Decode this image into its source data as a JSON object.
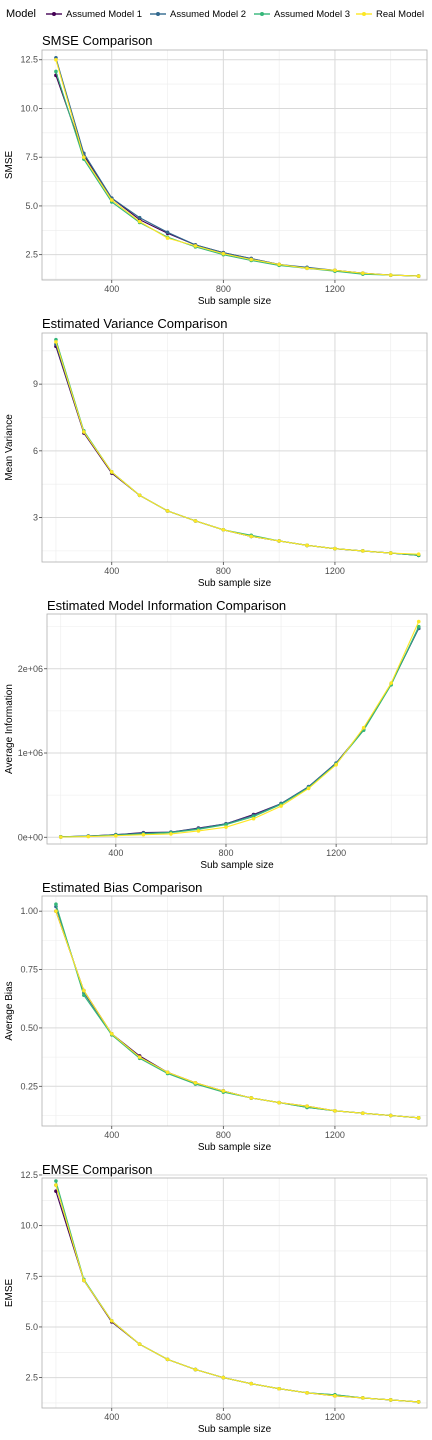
{
  "legend": {
    "title": "Model",
    "items": [
      {
        "label": "Assumed Model 1",
        "color": "#440154"
      },
      {
        "label": "Assumed Model 2",
        "color": "#31688e"
      },
      {
        "label": "Assumed Model 3",
        "color": "#35b779"
      },
      {
        "label": "Real Model",
        "color": "#fde725"
      }
    ]
  },
  "chart_data": [
    {
      "type": "line",
      "title": "SMSE Comparison",
      "xlabel": "Sub sample size",
      "ylabel": "SMSE",
      "xlim": [
        150,
        1530
      ],
      "ylim": [
        1.2,
        13.0
      ],
      "xticks": [
        400,
        800,
        1200
      ],
      "xtick_labels": [
        "400",
        "800",
        "1200"
      ],
      "yticks": [
        2.5,
        5.0,
        7.5,
        10.0,
        12.5
      ],
      "ytick_labels": [
        "2.5",
        "5.0",
        "7.5",
        "10.0",
        "12.5"
      ],
      "grid": true,
      "x": [
        200,
        300,
        400,
        500,
        600,
        700,
        800,
        900,
        1000,
        1100,
        1200,
        1300,
        1400,
        1500
      ],
      "series": [
        {
          "name": "Assumed Model 1",
          "values": [
            11.7,
            7.6,
            5.4,
            4.3,
            3.6,
            3.0,
            2.6,
            2.3,
            2.0,
            1.8,
            1.7,
            1.55,
            1.45,
            1.4
          ]
        },
        {
          "name": "Assumed Model 2",
          "values": [
            12.6,
            7.7,
            5.4,
            4.4,
            3.65,
            3.0,
            2.6,
            2.3,
            2.0,
            1.85,
            1.7,
            1.55,
            1.45,
            1.4
          ]
        },
        {
          "name": "Assumed Model 3",
          "values": [
            11.9,
            7.4,
            5.2,
            4.15,
            3.4,
            2.9,
            2.5,
            2.2,
            1.95,
            1.8,
            1.65,
            1.5,
            1.45,
            1.4
          ]
        },
        {
          "name": "Real Model",
          "values": [
            12.5,
            7.5,
            5.3,
            4.2,
            3.35,
            2.95,
            2.55,
            2.25,
            2.0,
            1.8,
            1.7,
            1.55,
            1.45,
            1.4
          ]
        }
      ]
    },
    {
      "type": "line",
      "title": "Estimated Variance Comparison",
      "xlabel": "Sub sample size",
      "ylabel": "Mean Variance",
      "xlim": [
        150,
        1530
      ],
      "ylim": [
        1.0,
        11.3
      ],
      "xticks": [
        400,
        800,
        1200
      ],
      "xtick_labels": [
        "400",
        "800",
        "1200"
      ],
      "yticks": [
        3,
        6,
        9
      ],
      "ytick_labels": [
        "3",
        "6",
        "9"
      ],
      "grid": true,
      "x": [
        200,
        300,
        400,
        500,
        600,
        700,
        800,
        900,
        1000,
        1100,
        1200,
        1300,
        1400,
        1500
      ],
      "series": [
        {
          "name": "Assumed Model 1",
          "values": [
            10.7,
            6.8,
            5.0,
            4.0,
            3.3,
            2.85,
            2.45,
            2.15,
            1.95,
            1.75,
            1.6,
            1.5,
            1.4,
            1.3
          ]
        },
        {
          "name": "Assumed Model 2",
          "values": [
            10.8,
            6.85,
            5.05,
            4.0,
            3.3,
            2.85,
            2.45,
            2.15,
            1.95,
            1.75,
            1.6,
            1.5,
            1.4,
            1.3
          ]
        },
        {
          "name": "Assumed Model 3",
          "values": [
            11.0,
            6.9,
            5.05,
            4.0,
            3.3,
            2.85,
            2.45,
            2.2,
            1.95,
            1.75,
            1.6,
            1.5,
            1.4,
            1.3
          ]
        },
        {
          "name": "Real Model",
          "values": [
            10.9,
            6.85,
            5.05,
            4.0,
            3.3,
            2.85,
            2.45,
            2.15,
            1.95,
            1.75,
            1.6,
            1.5,
            1.4,
            1.35
          ]
        }
      ]
    },
    {
      "type": "line",
      "title": "Estimated Model Information Comparison",
      "xlabel": "Sub sample size",
      "ylabel": "Average Information",
      "xlim": [
        150,
        1530
      ],
      "ylim": [
        -80000,
        2650000
      ],
      "xticks": [
        400,
        800,
        1200
      ],
      "xtick_labels": [
        "400",
        "800",
        "1200"
      ],
      "yticks": [
        0,
        1000000,
        2000000
      ],
      "ytick_labels": [
        "0e+00",
        "1e+06",
        "2e+06"
      ],
      "grid": true,
      "x": [
        200,
        300,
        400,
        500,
        600,
        700,
        800,
        900,
        1000,
        1100,
        1200,
        1300,
        1400,
        1500
      ],
      "series": [
        {
          "name": "Assumed Model 1",
          "values": [
            5000,
            15000,
            30000,
            55000,
            60000,
            110000,
            160000,
            270000,
            400000,
            600000,
            880000,
            1280000,
            1820000,
            2480000
          ]
        },
        {
          "name": "Assumed Model 2",
          "values": [
            5000,
            15000,
            30000,
            50000,
            60000,
            105000,
            160000,
            260000,
            400000,
            600000,
            880000,
            1280000,
            1820000,
            2480000
          ]
        },
        {
          "name": "Assumed Model 3",
          "values": [
            5000,
            12000,
            25000,
            40000,
            55000,
            95000,
            150000,
            245000,
            390000,
            590000,
            870000,
            1270000,
            1810000,
            2500000
          ]
        },
        {
          "name": "Real Model",
          "values": [
            3000,
            8000,
            18000,
            30000,
            40000,
            75000,
            120000,
            220000,
            370000,
            580000,
            860000,
            1300000,
            1830000,
            2560000
          ]
        }
      ]
    },
    {
      "type": "line",
      "title": "Estimated Bias Comparison",
      "xlabel": "Sub sample size",
      "ylabel": "Average Bias",
      "xlim": [
        150,
        1530
      ],
      "ylim": [
        0.08,
        1.065
      ],
      "xticks": [
        400,
        800,
        1200
      ],
      "xtick_labels": [
        "400",
        "800",
        "1200"
      ],
      "yticks": [
        0.25,
        0.5,
        0.75,
        1.0
      ],
      "ytick_labels": [
        "0.25",
        "0.50",
        "0.75",
        "1.00"
      ],
      "grid": true,
      "x": [
        200,
        300,
        400,
        500,
        600,
        700,
        800,
        900,
        1000,
        1100,
        1200,
        1300,
        1400,
        1500
      ],
      "series": [
        {
          "name": "Assumed Model 1",
          "values": [
            1.0,
            0.66,
            0.475,
            0.38,
            0.31,
            0.265,
            0.23,
            0.2,
            0.18,
            0.165,
            0.145,
            0.135,
            0.125,
            0.115
          ]
        },
        {
          "name": "Assumed Model 2",
          "values": [
            1.02,
            0.65,
            0.475,
            0.375,
            0.31,
            0.26,
            0.23,
            0.2,
            0.18,
            0.16,
            0.145,
            0.135,
            0.125,
            0.115
          ]
        },
        {
          "name": "Assumed Model 3",
          "values": [
            1.03,
            0.64,
            0.47,
            0.37,
            0.305,
            0.26,
            0.225,
            0.2,
            0.18,
            0.16,
            0.145,
            0.135,
            0.125,
            0.115
          ]
        },
        {
          "name": "Real Model",
          "values": [
            1.0,
            0.66,
            0.475,
            0.375,
            0.31,
            0.265,
            0.23,
            0.2,
            0.18,
            0.165,
            0.145,
            0.135,
            0.125,
            0.115
          ]
        }
      ]
    },
    {
      "type": "line",
      "title": "EMSE Comparison",
      "xlabel": "Sub sample size",
      "ylabel": "EMSE",
      "xlim": [
        150,
        1530
      ],
      "ylim": [
        1.0,
        12.35
      ],
      "xticks": [
        400,
        800,
        1200
      ],
      "xtick_labels": [
        "400",
        "800",
        "1200"
      ],
      "yticks": [
        2.5,
        5.0,
        7.5,
        10.0,
        12.5
      ],
      "ytick_labels": [
        "2.5",
        "5.0",
        "7.5",
        "10.0",
        "12.5"
      ],
      "grid": true,
      "x": [
        200,
        300,
        400,
        500,
        600,
        700,
        800,
        900,
        1000,
        1100,
        1200,
        1300,
        1400,
        1500
      ],
      "series": [
        {
          "name": "Assumed Model 1",
          "values": [
            11.7,
            7.3,
            5.25,
            4.15,
            3.4,
            2.9,
            2.5,
            2.2,
            1.95,
            1.75,
            1.6,
            1.5,
            1.4,
            1.3
          ]
        },
        {
          "name": "Assumed Model 2",
          "values": [
            12.0,
            7.3,
            5.3,
            4.15,
            3.4,
            2.9,
            2.5,
            2.2,
            1.95,
            1.75,
            1.65,
            1.5,
            1.4,
            1.3
          ]
        },
        {
          "name": "Assumed Model 3",
          "values": [
            12.2,
            7.35,
            5.3,
            4.15,
            3.4,
            2.9,
            2.5,
            2.2,
            1.95,
            1.75,
            1.65,
            1.5,
            1.4,
            1.3
          ]
        },
        {
          "name": "Real Model",
          "values": [
            12.0,
            7.3,
            5.3,
            4.15,
            3.4,
            2.9,
            2.5,
            2.2,
            1.95,
            1.75,
            1.6,
            1.5,
            1.4,
            1.3
          ]
        }
      ]
    }
  ]
}
